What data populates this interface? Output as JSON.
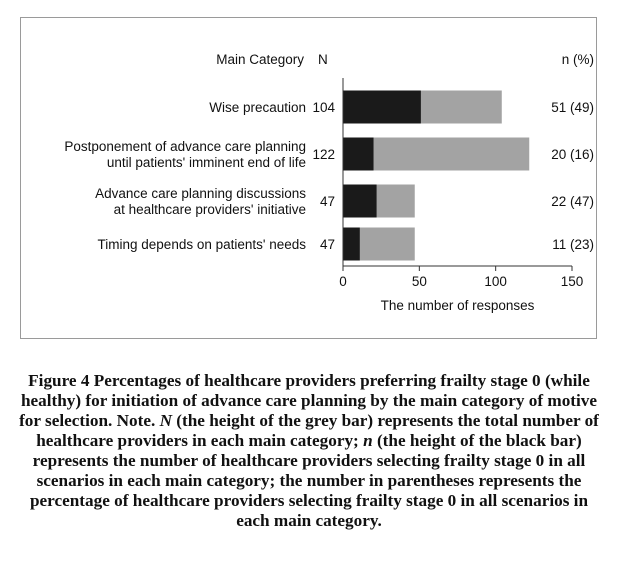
{
  "chart_data": {
    "type": "bar",
    "categories": [
      [
        "Wise precaution"
      ],
      [
        "Postponement of advance care planning",
        "until patients' imminent end of life"
      ],
      [
        "Advance care planning discussions",
        "at healthcare providers' initiative"
      ],
      [
        "Timing depends on patients' needs"
      ]
    ],
    "N": [
      104,
      122,
      47,
      47
    ],
    "n": [
      51,
      20,
      22,
      11
    ],
    "n_pct_labels": [
      "51 (49)",
      "20 (16)",
      "22 (47)",
      "11 (23)"
    ],
    "series": [
      {
        "name": "N",
        "values": [
          104,
          122,
          47,
          47
        ],
        "color": "#a3a3a3"
      },
      {
        "name": "n",
        "values": [
          51,
          20,
          22,
          11
        ],
        "color": "#1a1a1a"
      }
    ],
    "header_category": "Main Category",
    "header_N": "N",
    "header_n": "n (%)",
    "xlabel": "The number of responses",
    "xticks": [
      0,
      50,
      100,
      150
    ],
    "xlim": [
      0,
      150
    ],
    "orientation": "horizontal"
  },
  "caption": {
    "part1": "Figure 4 Percentages of healthcare providers preferring frailty stage 0 (while healthy) for initiation of advance care planning by the main category of motive for selection. Note. ",
    "N_symbol": "N",
    "part2": " (the height of the grey bar) represents the total number of healthcare providers in each main category; ",
    "n_symbol": "n",
    "part3": " (the height of the black bar) represents the number of healthcare providers selecting frailty stage 0 in all scenarios in each main category; the number in parentheses represents the percentage of healthcare providers selecting frailty stage 0 in all scenarios in each main category."
  }
}
